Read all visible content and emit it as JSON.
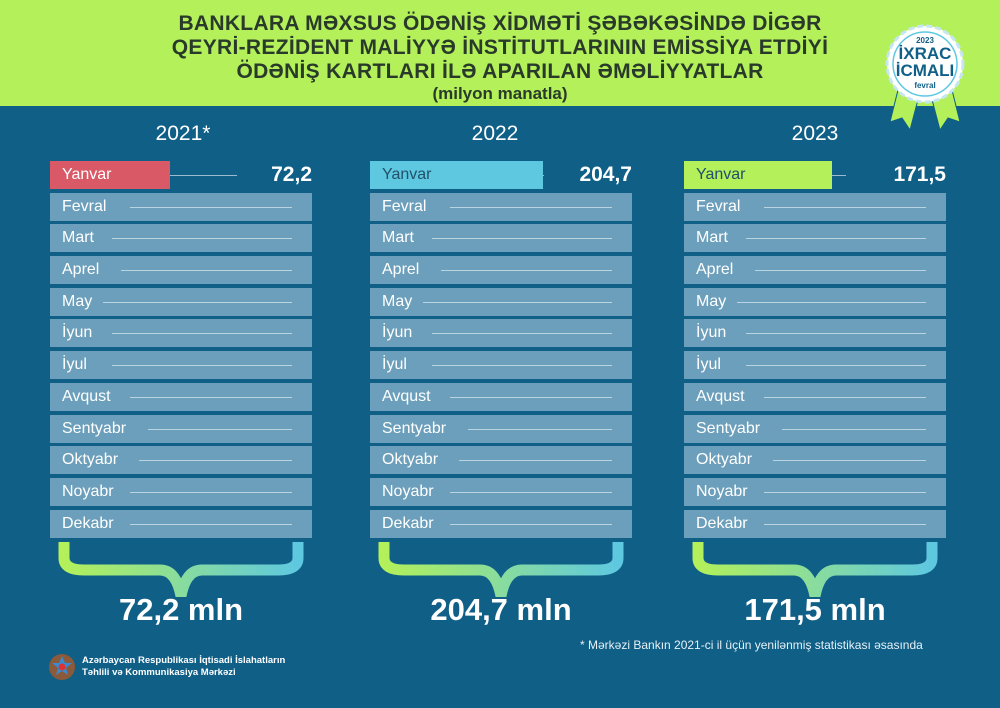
{
  "header": {
    "title_lines": [
      "BANKLARA MƏXSUS ÖDƏNİŞ XİDMƏTİ ŞƏBƏKƏSİNDƏ DİGƏR",
      "QEYRİ-REZİDENT MALİYYƏ İNSTİTUTLARININ EMİSSİYA ETDİYİ",
      "ÖDƏNİŞ KARTLARI İLƏ APARILAN ƏMƏLİYYATLAR"
    ],
    "subtitle": "(milyon manatla)"
  },
  "badge": {
    "year": "2023",
    "line1": "İXRAC",
    "line2": "İCMALI",
    "month": "fevral"
  },
  "months": [
    "Yanvar",
    "Fevral",
    "Mart",
    "Aprel",
    "May",
    "İyun",
    "İyul",
    "Avqust",
    "Sentyabr",
    "Oktyabr",
    "Noyabr",
    "Dekabr"
  ],
  "panels": [
    {
      "year": "2021*",
      "january_value": "72,2",
      "january_value_num": 72.2,
      "total": "72,2 mln",
      "color": "#d95a66"
    },
    {
      "year": "2022",
      "january_value": "204,7",
      "january_value_num": 204.7,
      "total": "204,7 mln",
      "color": "#5ec8e0"
    },
    {
      "year": "2023",
      "january_value": "171,5",
      "january_value_num": 171.5,
      "total": "171,5 mln",
      "color": "#b3f05a"
    }
  ],
  "footnote": "* Mərkəzi Bankın 2021-ci il üçün yenilənmiş statistikası əsasında",
  "org": {
    "line1": "Azərbaycan Respublikası İqtisadi İslahatların",
    "line2": "Təhlili və Kommunikasiya Mərkəzi"
  }
}
